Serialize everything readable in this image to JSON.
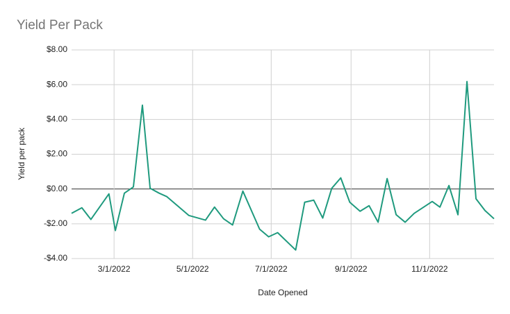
{
  "chart_data": {
    "type": "line",
    "title": "Yield Per Pack",
    "xlabel": "Date Opened",
    "ylabel": "Yield per pack",
    "x": [
      "2022-01-27",
      "2022-02-04",
      "2022-02-11",
      "2022-02-25",
      "2022-03-02",
      "2022-03-09",
      "2022-03-16",
      "2022-03-23",
      "2022-03-29",
      "2022-04-05",
      "2022-04-11",
      "2022-04-28",
      "2022-05-11",
      "2022-05-18",
      "2022-05-25",
      "2022-06-01",
      "2022-06-09",
      "2022-06-22",
      "2022-06-29",
      "2022-07-06",
      "2022-07-20",
      "2022-07-27",
      "2022-08-03",
      "2022-08-10",
      "2022-08-17",
      "2022-08-24",
      "2022-08-31",
      "2022-09-08",
      "2022-09-15",
      "2022-09-22",
      "2022-09-29",
      "2022-10-06",
      "2022-10-13",
      "2022-10-20",
      "2022-11-03",
      "2022-11-09",
      "2022-11-16",
      "2022-11-23",
      "2022-11-30",
      "2022-12-07",
      "2022-12-14",
      "2022-12-21"
    ],
    "series": [
      {
        "name": "Yield per pack",
        "color": "#1f9a7e",
        "values": [
          -1.4,
          -1.08,
          -1.75,
          -0.28,
          -2.39,
          -0.24,
          0.12,
          4.82,
          0.04,
          -0.24,
          -0.44,
          -1.52,
          -1.79,
          -1.04,
          -1.71,
          -2.07,
          -0.12,
          -2.31,
          -2.75,
          -2.51,
          -3.51,
          -0.76,
          -0.64,
          -1.67,
          0.04,
          0.64,
          -0.76,
          -1.28,
          -0.96,
          -1.91,
          0.6,
          -1.48,
          -1.91,
          -1.4,
          -0.72,
          -1.04,
          0.2,
          -1.48,
          6.18,
          -0.56,
          -1.24,
          -1.71
        ]
      }
    ],
    "xlim": [
      "2022-01-27",
      "2022-12-21"
    ],
    "xticks": [
      {
        "value": "2022-03-01",
        "label": "3/1/2022"
      },
      {
        "value": "2022-05-01",
        "label": "5/1/2022"
      },
      {
        "value": "2022-07-01",
        "label": "7/1/2022"
      },
      {
        "value": "2022-09-01",
        "label": "9/1/2022"
      },
      {
        "value": "2022-11-01",
        "label": "11/1/2022"
      }
    ],
    "ylim": [
      -4,
      8
    ],
    "yticks": [
      {
        "value": -4,
        "label": "-$4.00"
      },
      {
        "value": -2,
        "label": "-$2.00"
      },
      {
        "value": 0,
        "label": "$0.00"
      },
      {
        "value": 2,
        "label": "$2.00"
      },
      {
        "value": 4,
        "label": "$4.00"
      },
      {
        "value": 6,
        "label": "$6.00"
      },
      {
        "value": 8,
        "label": "$8.00"
      }
    ],
    "grid": true
  }
}
